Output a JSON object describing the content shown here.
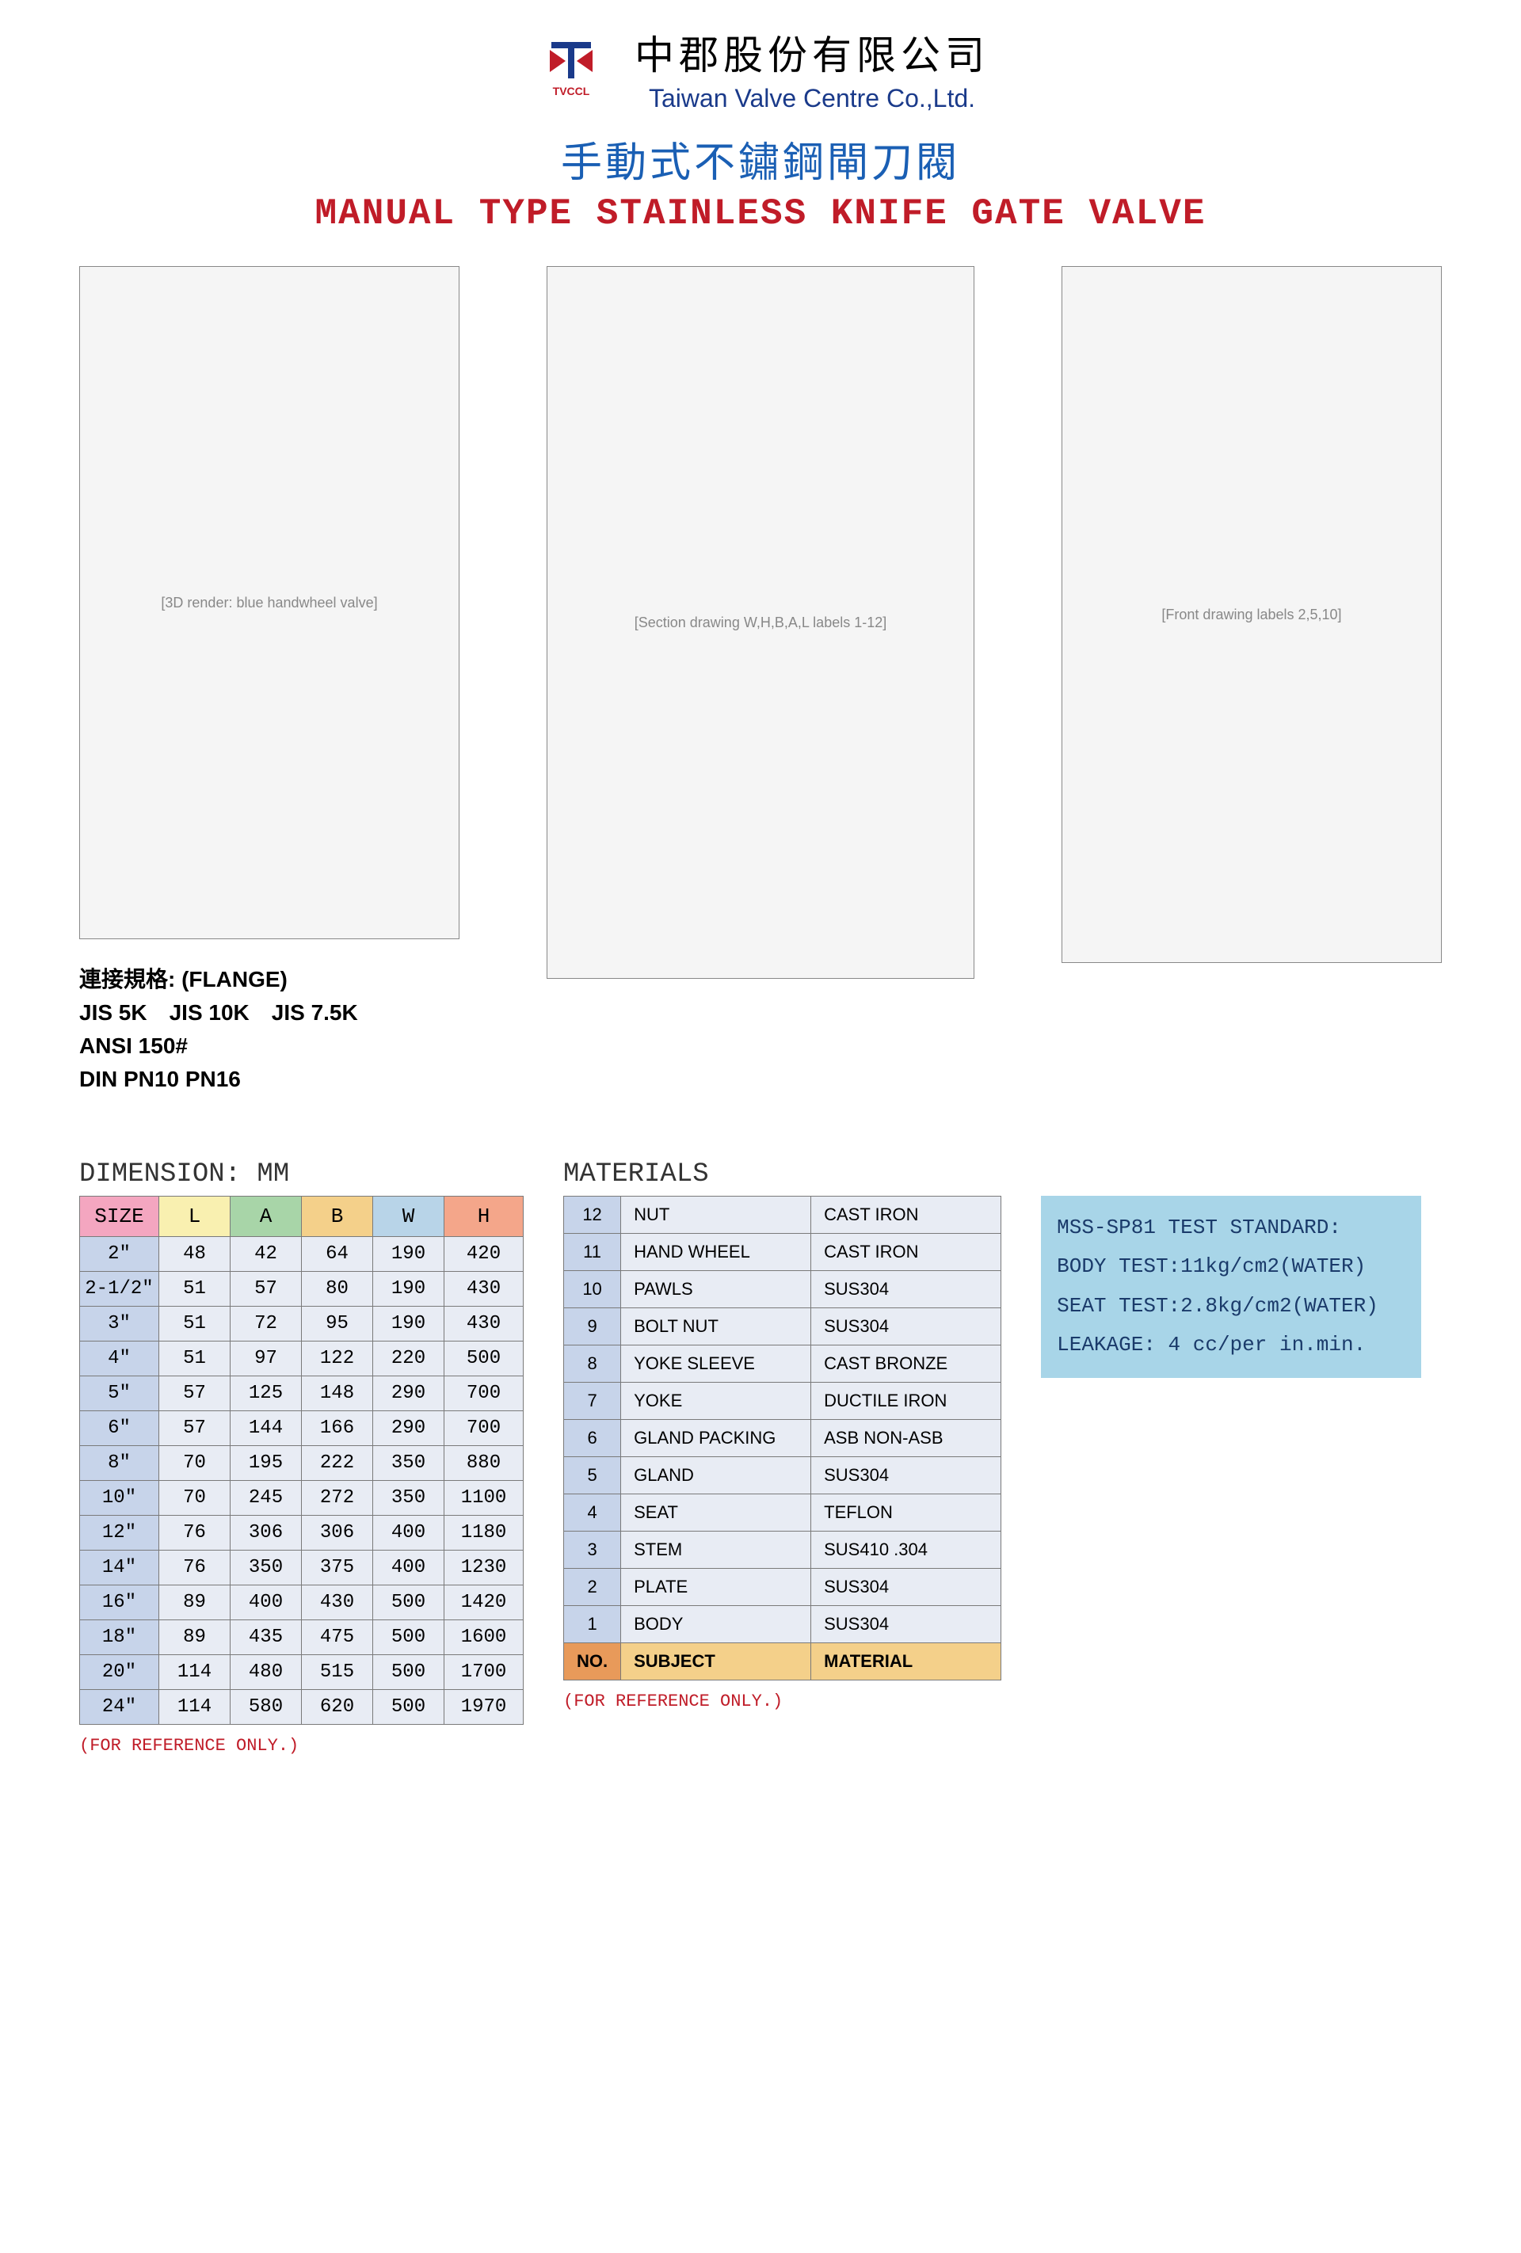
{
  "company": {
    "logo_label": "TVCCL",
    "cn": "中郡股份有限公司",
    "en": "Taiwan Valve Centre Co.,Ltd."
  },
  "title": {
    "cn": "手動式不鏽鋼閘刀閥",
    "en": "MANUAL TYPE STAINLESS KNIFE GATE VALVE"
  },
  "images": {
    "render_placeholder": "[3D render: blue handwheel valve]",
    "drawing1_placeholder": "[Section drawing W,H,B,A,L labels 1-12]",
    "drawing2_placeholder": "[Front drawing labels 2,5,10]"
  },
  "flange": {
    "label": "連接規格: (FLANGE)",
    "line1": "JIS 5K JIS 10K JIS 7.5K",
    "line2": "ANSI 150#",
    "line3": "DIN PN10 PN16"
  },
  "dimension": {
    "title": "DIMENSION: MM",
    "headers": [
      "SIZE",
      "L",
      "A",
      "B",
      "W",
      "H"
    ],
    "rows": [
      [
        "2\"",
        "48",
        "42",
        "64",
        "190",
        "420"
      ],
      [
        "2-1/2\"",
        "51",
        "57",
        "80",
        "190",
        "430"
      ],
      [
        "3\"",
        "51",
        "72",
        "95",
        "190",
        "430"
      ],
      [
        "4\"",
        "51",
        "97",
        "122",
        "220",
        "500"
      ],
      [
        "5\"",
        "57",
        "125",
        "148",
        "290",
        "700"
      ],
      [
        "6\"",
        "57",
        "144",
        "166",
        "290",
        "700"
      ],
      [
        "8\"",
        "70",
        "195",
        "222",
        "350",
        "880"
      ],
      [
        "10\"",
        "70",
        "245",
        "272",
        "350",
        "1100"
      ],
      [
        "12\"",
        "76",
        "306",
        "306",
        "400",
        "1180"
      ],
      [
        "14\"",
        "76",
        "350",
        "375",
        "400",
        "1230"
      ],
      [
        "16\"",
        "89",
        "400",
        "430",
        "500",
        "1420"
      ],
      [
        "18\"",
        "89",
        "435",
        "475",
        "500",
        "1600"
      ],
      [
        "20\"",
        "114",
        "480",
        "515",
        "500",
        "1700"
      ],
      [
        "24\"",
        "114",
        "580",
        "620",
        "500",
        "1970"
      ]
    ],
    "note": "(FOR REFERENCE ONLY.)"
  },
  "materials": {
    "title": "MATERIALS",
    "rows": [
      [
        "12",
        "NUT",
        "CAST IRON"
      ],
      [
        "11",
        "HAND WHEEL",
        "CAST IRON"
      ],
      [
        "10",
        "PAWLS",
        "SUS304"
      ],
      [
        "9",
        "BOLT NUT",
        "SUS304"
      ],
      [
        "8",
        "YOKE SLEEVE",
        "CAST BRONZE"
      ],
      [
        "7",
        "YOKE",
        "DUCTILE IRON"
      ],
      [
        "6",
        "GLAND PACKING",
        "ASB NON-ASB"
      ],
      [
        "5",
        "GLAND",
        "SUS304"
      ],
      [
        "4",
        "SEAT",
        "TEFLON"
      ],
      [
        "3",
        "STEM",
        "SUS410 .304"
      ],
      [
        "2",
        "PLATE",
        "SUS304"
      ],
      [
        "1",
        "BODY",
        "SUS304"
      ]
    ],
    "header": [
      "NO.",
      "SUBJECT",
      "MATERIAL"
    ],
    "note": "(FOR REFERENCE ONLY.)"
  },
  "test": {
    "line1": "MSS-SP81 TEST STANDARD:",
    "line2": "BODY TEST:11kg/cm2(WATER)",
    "line3": "SEAT TEST:2.8kg/cm2(WATER)",
    "line4": "LEAKAGE: 4 cc/per in.min."
  },
  "colors": {
    "title_cn": "#1a5fb4",
    "title_en": "#c01c28",
    "table_stripe": "#e8ecf4",
    "size_col": "#c7d4ea",
    "test_bg": "#a8d5e8"
  }
}
